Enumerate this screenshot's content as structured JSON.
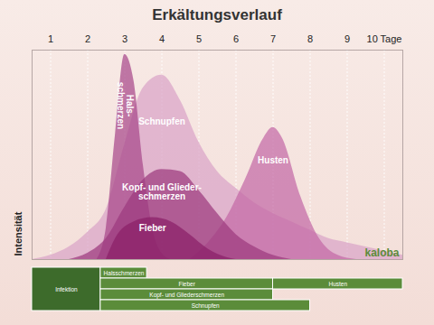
{
  "chart_data": {
    "type": "area",
    "title": "Erkältungsverlauf",
    "y_label": "Intensität",
    "xlim": [
      0.5,
      10.5
    ],
    "xticks": [
      1,
      2,
      3,
      4,
      5,
      6,
      7,
      8,
      9,
      {
        "value": 10,
        "label": "10 Tage"
      }
    ],
    "ylim": [
      0,
      100
    ],
    "yticks": [],
    "grid": true,
    "tick_labels": "x",
    "series": [
      {
        "name": "Schnupfen",
        "color": "#d9a3c8",
        "x": [
          0.5,
          1,
          1.5,
          2,
          2.5,
          3,
          3.5,
          4,
          4.5,
          5,
          5.5,
          6,
          6.5,
          7,
          7.5,
          8,
          8.5,
          9,
          9.5,
          10,
          10.5
        ],
        "values": [
          0,
          2,
          6,
          13,
          24,
          55,
          82,
          88,
          76,
          56,
          42,
          34,
          27,
          22,
          18,
          14,
          10,
          8,
          6,
          4,
          2
        ]
      },
      {
        "name": "Husten",
        "color": "#c46aa6",
        "x": [
          4.75,
          5.25,
          5.75,
          6.25,
          6.75,
          7,
          7.25,
          7.75,
          8.25,
          8.75,
          9.25
        ],
        "values": [
          0,
          8,
          20,
          38,
          58,
          63,
          58,
          30,
          10,
          2,
          0
        ]
      },
      {
        "name": "Halsschmerzen",
        "label": "Hals-\nschmerzen",
        "color": "#a8488a",
        "x": [
          2.25,
          2.5,
          2.75,
          3,
          3.25,
          3.5,
          3.75,
          4,
          4.25
        ],
        "values": [
          0,
          15,
          60,
          98,
          85,
          45,
          15,
          3,
          0
        ]
      },
      {
        "name": "Kopf- und Gliederschmerzen",
        "label": "Kopf- und Glieder-\nschmerzen",
        "color": "#9c3a7e",
        "x": [
          1.5,
          2,
          2.5,
          3,
          3.5,
          4,
          4.5,
          5,
          5.5,
          6,
          6.5,
          7,
          7.5
        ],
        "values": [
          0,
          3,
          10,
          25,
          38,
          43,
          42,
          33,
          22,
          12,
          6,
          2,
          0
        ]
      },
      {
        "name": "Fieber",
        "color": "#8a2068",
        "x": [
          2.5,
          2.75,
          3.25,
          3.75,
          4.25,
          4.75,
          5.25,
          5.75,
          6
        ],
        "values": [
          0,
          10,
          18,
          20,
          18,
          12,
          5,
          1,
          0
        ]
      }
    ],
    "timeline": [
      {
        "name": "Infektion",
        "start": 0.5,
        "end": 2.35,
        "lanes": [
          1,
          4
        ],
        "color": "#3d6b2b"
      },
      {
        "name": "Halsschmerzen",
        "start": 2.35,
        "end": 3.6,
        "lanes": [
          1,
          1
        ],
        "color": "#5b8c3a"
      },
      {
        "name": "Fieber",
        "start": 2.35,
        "end": 7,
        "lanes": [
          2,
          2
        ],
        "color": "#5b8c3a"
      },
      {
        "name": "Husten",
        "start": 7,
        "end": 10.5,
        "lanes": [
          2,
          2
        ],
        "color": "#5b8c3a"
      },
      {
        "name": "Kopf- und Gliederschmerzen",
        "start": 2.35,
        "end": 7,
        "lanes": [
          3,
          3
        ],
        "color": "#5b8c3a"
      },
      {
        "name": "Schnupfen",
        "start": 2.35,
        "end": 8,
        "lanes": [
          4,
          4
        ],
        "color": "#5b8c3a"
      }
    ],
    "annotations": [
      "kaloba"
    ]
  }
}
